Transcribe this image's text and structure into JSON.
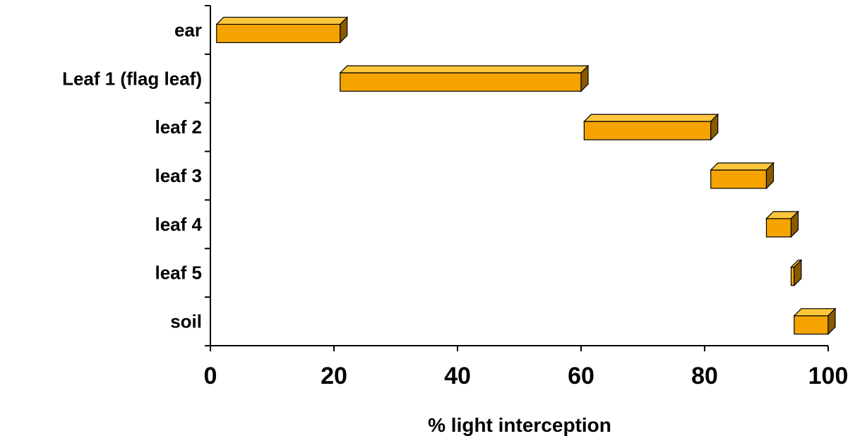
{
  "chart_data": {
    "type": "bar",
    "orientation": "horizontal",
    "style": "floating 3d bars",
    "categories": [
      "ear",
      "Leaf 1 (flag leaf)",
      "leaf 2",
      "leaf 3",
      "leaf 4",
      "leaf 5",
      "soil"
    ],
    "ranges": [
      [
        1,
        21
      ],
      [
        21,
        60
      ],
      [
        60.5,
        81
      ],
      [
        81,
        90
      ],
      [
        90,
        94
      ],
      [
        94,
        94.5
      ],
      [
        94.5,
        100
      ]
    ],
    "xlabel": "% light interception",
    "xlim": [
      0,
      100
    ],
    "xticks": [
      "0",
      "20",
      "40",
      "60",
      "80",
      "100"
    ],
    "grid": false,
    "colors": {
      "front": "#F5A300",
      "top": "#FDC63C",
      "side": "#8A5A00",
      "outline": "#000000"
    }
  }
}
